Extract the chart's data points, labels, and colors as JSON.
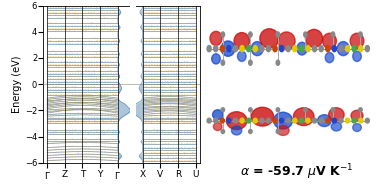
{
  "ylabel": "Energy (eV)",
  "ylim": [
    -6,
    6
  ],
  "yticks": [
    -6,
    -4,
    -2,
    0,
    2,
    4,
    6
  ],
  "kpoints_labels": [
    "$\\Gamma$",
    "Z",
    "T",
    "Y",
    "$\\Gamma$",
    "X",
    "V",
    "R",
    "U"
  ],
  "bg_color": "#ffffff",
  "band_color_blue": "#5b8db8",
  "band_color_orange": "#f5a623",
  "figsize": [
    3.78,
    1.87
  ],
  "dpi": 100,
  "band_energies_groups": [
    [
      -5.85,
      -5.65,
      -5.45,
      -5.25,
      -5.05,
      -4.85
    ],
    [
      -4.55,
      -4.38,
      -4.22
    ],
    [
      -3.82,
      -3.65,
      -3.52
    ],
    [
      -2.95,
      -2.82,
      -2.69,
      -2.57,
      -2.45,
      -2.33,
      -2.21,
      -2.09,
      -1.97,
      -1.87,
      -1.77,
      -1.67,
      -1.57,
      -1.47,
      -1.37,
      -1.27,
      -1.17,
      -1.07
    ],
    [
      -0.82,
      -0.62,
      -0.42,
      -0.22
    ],
    [
      0.0,
      0.2,
      0.4,
      0.6,
      0.8,
      1.0
    ],
    [
      1.3,
      1.5,
      1.7
    ],
    [
      2.1,
      2.3,
      2.5
    ],
    [
      3.1,
      3.3,
      3.5
    ],
    [
      4.05,
      4.25,
      4.45,
      4.65
    ],
    [
      5.05,
      5.25,
      5.45,
      5.65,
      5.85
    ]
  ],
  "seebeck_text": "$\\alpha$ = -59.7 $\\mu$V K$^{-1}$",
  "seebeck_fontsize": 9
}
